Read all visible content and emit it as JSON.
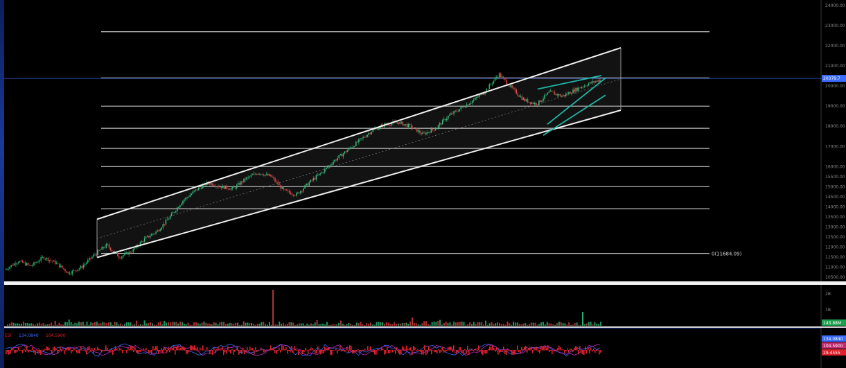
{
  "chart_data": [
    {
      "type": "candlestick",
      "title": "",
      "y_ticks": [
        "24000.00",
        "23000.00",
        "22000.00",
        "21000.00",
        "20000.00",
        "19000.00",
        "18000.00",
        "17000.00",
        "16000.00",
        "15500.00",
        "15000.00",
        "14500.00",
        "14000.00",
        "13500.00",
        "13000.00",
        "12500.00",
        "12000.00",
        "11500.00",
        "11000.00",
        "10500.00"
      ],
      "current_price_label": "20379.7",
      "fib_levels": [
        {
          "label": "0(11684.09)",
          "value": 11684.09
        },
        {
          "label": "",
          "value": 13900
        },
        {
          "label": "",
          "value": 15000
        },
        {
          "label": "",
          "value": 16000
        },
        {
          "label": "",
          "value": 16900
        },
        {
          "label": "",
          "value": 17900
        },
        {
          "label": "",
          "value": 19000
        },
        {
          "label": "",
          "value": 20400
        },
        {
          "label": "",
          "value": 22700
        }
      ],
      "trend_channel": {
        "upper": [
          13380,
          21900
        ],
        "lower": [
          11480,
          18800
        ]
      },
      "price_path": [
        10900,
        11300,
        11050,
        11500,
        11200,
        10700,
        11000,
        11600,
        12100,
        11500,
        11800,
        12400,
        12800,
        13500,
        14300,
        14800,
        15200,
        15000,
        14900,
        15400,
        15700,
        15500,
        14800,
        14600,
        15200,
        15700,
        16300,
        16800,
        17300,
        17800,
        18100,
        18200,
        18000,
        17600,
        17900,
        18500,
        18900,
        19300,
        19800,
        20600,
        19900,
        19300,
        19100,
        19700,
        19500,
        19800,
        20100,
        20300
      ]
    },
    {
      "type": "bar",
      "title": "",
      "y_ticks": [
        "2B",
        "1B"
      ],
      "value_label": "143.88M"
    },
    {
      "type": "line",
      "title": "",
      "legend": [
        "ESI",
        "134.0840",
        "104.5900"
      ],
      "value_labels": [
        "134.0840",
        "104.5900",
        "29.4555"
      ],
      "series": [
        {
          "name": "ESI",
          "color": "#e0202a"
        },
        {
          "name": "134.0840",
          "color": "#3b6cff"
        },
        {
          "name": "104.5900",
          "color": "#c02abf"
        }
      ]
    }
  ],
  "colors": {
    "background": "#000000",
    "frame": "#0b1f5c",
    "grid": "#e0e0e0",
    "up": "#27b06e",
    "down": "#d23b3b",
    "trend": "#1fb5a6",
    "price_line": "#2f5bd6"
  }
}
